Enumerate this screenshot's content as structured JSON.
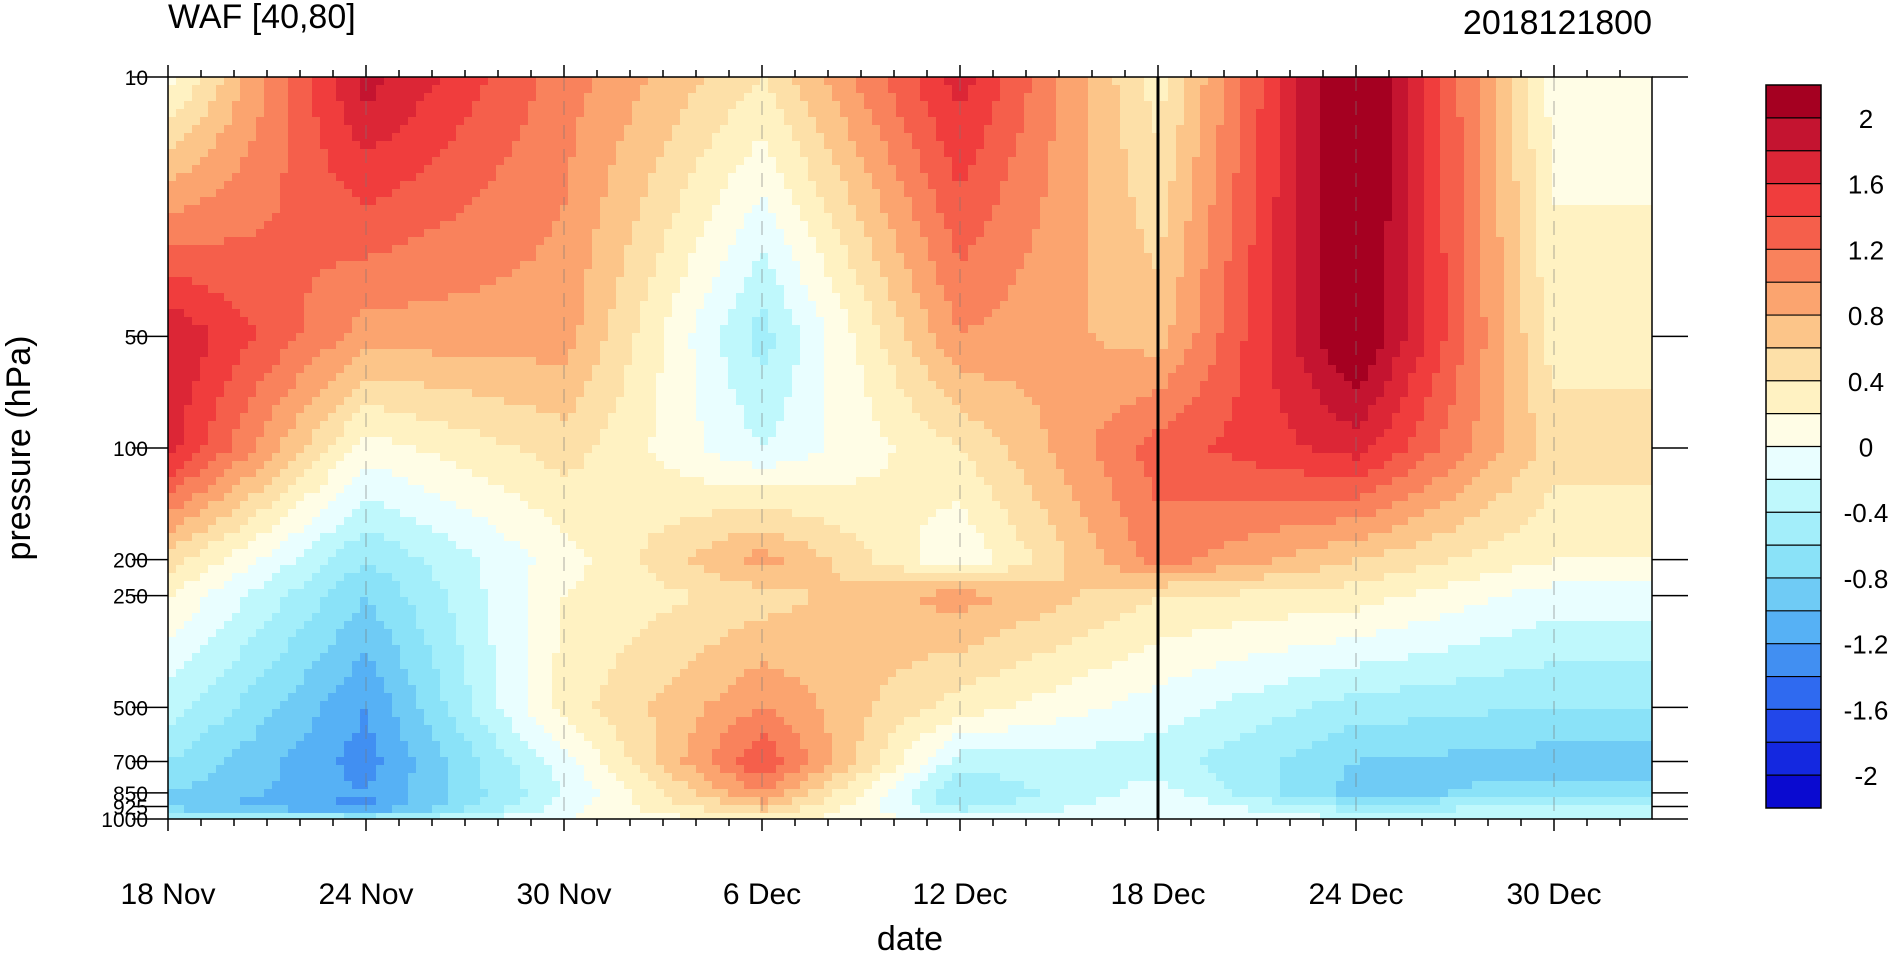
{
  "chart_data": {
    "type": "heatmap",
    "title": "WAF [40,80]",
    "title_right": "2018121800",
    "xlabel": "date",
    "ylabel": "pressure (hPa)",
    "x_ticks": [
      "18 Nov",
      "24 Nov",
      "30 Nov",
      "6 Dec",
      "12 Dec",
      "18 Dec",
      "24 Dec",
      "30 Dec"
    ],
    "y_ticks": [
      "10",
      "50",
      "100",
      "200",
      "250",
      "500",
      "700",
      "850",
      "925",
      "1000"
    ],
    "x_range": [
      "2018-11-18",
      "2019-01-02"
    ],
    "y_range": [
      1000,
      10
    ],
    "y_scale": "log",
    "marker_date": "2018-12-18",
    "grid": "dashed vertical lines at labeled dates",
    "colorbar": {
      "labels": [
        "2",
        "1.6",
        "1.2",
        "0.8",
        "0.4",
        "0",
        "-0.4",
        "-0.8",
        "-1.2",
        "-1.6",
        "-2"
      ],
      "levels": [
        2.2,
        2.0,
        1.8,
        1.6,
        1.4,
        1.2,
        1.0,
        0.8,
        0.6,
        0.4,
        0.2,
        0.0,
        -0.2,
        -0.4,
        -0.6,
        -0.8,
        -1.0,
        -1.2,
        -1.4,
        -1.6,
        -1.8,
        -2.0,
        -2.2
      ],
      "colors": [
        "#a50021",
        "#c41430",
        "#dc2636",
        "#f03d3d",
        "#f55f4b",
        "#f9825c",
        "#fba46f",
        "#fcc589",
        "#fde0a8",
        "#fff2c2",
        "#fffde6",
        "#e9feff",
        "#bff8fc",
        "#a3eefa",
        "#8ae2f8",
        "#6fcbf5",
        "#56b1f5",
        "#418ff2",
        "#2f6af0",
        "#2247ea",
        "#1428e0",
        "#0a0ad0"
      ]
    },
    "pressure_levels": [
      10,
      50,
      100,
      200,
      250,
      500,
      700,
      850,
      925,
      1000
    ],
    "dates_index_step_days": 6,
    "values": [
      [
        0.1,
        1.9,
        1.1,
        0.4,
        1.7,
        0.3,
        2.4,
        0.1
      ],
      [
        1.8,
        0.9,
        0.9,
        -0.5,
        1.0,
        0.7,
        2.3,
        0.3
      ],
      [
        1.7,
        0.1,
        0.5,
        -0.2,
        0.4,
        1.3,
        1.7,
        0.5
      ],
      [
        0.5,
        -0.6,
        0.1,
        0.9,
        0.0,
        1.1,
        0.6,
        0.2
      ],
      [
        0.2,
        -0.8,
        0.2,
        0.5,
        0.9,
        0.4,
        0.3,
        -0.1
      ],
      [
        -0.3,
        -1.2,
        0.3,
        1.0,
        0.3,
        -0.1,
        -0.5,
        -0.6
      ],
      [
        -0.6,
        -1.3,
        -0.1,
        1.4,
        -0.3,
        -0.3,
        -0.8,
        -0.9
      ],
      [
        -0.8,
        -1.2,
        -0.2,
        1.0,
        -0.6,
        -0.1,
        -0.9,
        -0.7
      ],
      [
        -0.9,
        -1.3,
        -0.1,
        0.7,
        -0.5,
        0.0,
        -0.5,
        -0.4
      ],
      [
        -0.3,
        -0.5,
        0.0,
        0.3,
        -0.1,
        0.0,
        -0.2,
        -0.2
      ]
    ]
  }
}
